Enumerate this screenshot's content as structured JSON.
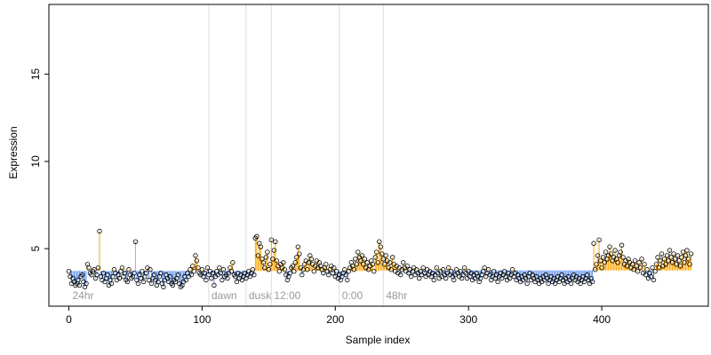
{
  "chart_data": {
    "type": "scatter",
    "title": "",
    "xlabel": "Sample index",
    "ylabel": "Expression",
    "xlim": [
      -15,
      480
    ],
    "ylim": [
      1.7,
      19.0
    ],
    "x_ticks": [
      0,
      100,
      200,
      300,
      400
    ],
    "y_ticks": [
      5,
      10,
      15
    ],
    "grid": false,
    "vertical_markers": [
      {
        "x": 105,
        "label": "dawn"
      },
      {
        "x": 133,
        "label": "dusk"
      },
      {
        "x": 152,
        "label": "12:00"
      },
      {
        "x": 203,
        "label": "0:00"
      },
      {
        "x": 236,
        "label": "48hr"
      }
    ],
    "annotations": [
      {
        "x": 2,
        "label": "24hr"
      }
    ],
    "baseline_colors": {
      "above": "#ffa500",
      "below": "#6495ed"
    },
    "series": [
      {
        "points_y": [
          3.7,
          3.4,
          3.0,
          3.3,
          3.1,
          2.9,
          3.0,
          3.2,
          2.9,
          3.4,
          3.5,
          3.1,
          2.8,
          3.0,
          4.1,
          3.9,
          3.6,
          3.5,
          3.7,
          3.8,
          3.3,
          3.5,
          3.9,
          6.0,
          3.4,
          3.2,
          3.6,
          3.1,
          3.3,
          3.5,
          2.9,
          3.2,
          3.0,
          3.4,
          3.8,
          3.6,
          3.2,
          3.5,
          3.3,
          3.7,
          3.9,
          3.4,
          3.6,
          3.2,
          3.1,
          3.8,
          3.5,
          3.3,
          3.4,
          3.6,
          5.4,
          3.2,
          3.0,
          3.5,
          3.3,
          3.7,
          3.1,
          3.4,
          3.6,
          3.9,
          3.2,
          3.8,
          3.0,
          3.3,
          3.5,
          3.2,
          2.9,
          3.1,
          3.4,
          3.6,
          3.0,
          2.8,
          3.2,
          3.5,
          3.3,
          3.1,
          3.4,
          3.0,
          2.9,
          3.2,
          3.1,
          3.3,
          3.5,
          3.0,
          2.8,
          2.9,
          3.1,
          3.4,
          3.2,
          3.6,
          3.4,
          3.8,
          3.5,
          4.0,
          3.7,
          4.6,
          4.3,
          3.9,
          3.6,
          3.5,
          3.8,
          3.4,
          3.6,
          3.2,
          3.9,
          3.5,
          3.7,
          3.3,
          3.6,
          2.9,
          3.4,
          3.7,
          3.5,
          3.9,
          3.6,
          3.2,
          3.8,
          3.4,
          3.5,
          3.3,
          3.6,
          3.9,
          3.7,
          4.2,
          3.5,
          3.4,
          3.1,
          3.6,
          3.3,
          3.5,
          3.2,
          3.4,
          3.6,
          3.3,
          3.5,
          3.7,
          3.4,
          3.6,
          3.8,
          3.5,
          5.6,
          5.7,
          4.6,
          5.3,
          5.1,
          4.4,
          4.2,
          3.9,
          4.5,
          4.8,
          3.8,
          4.1,
          5.5,
          4.4,
          4.9,
          5.4,
          4.3,
          4.0,
          3.7,
          4.1,
          3.9,
          4.2,
          3.8,
          3.5,
          3.2,
          3.4,
          3.6,
          3.9,
          4.0,
          3.7,
          4.2,
          4.5,
          5.1,
          4.7,
          3.9,
          3.5,
          3.8,
          4.1,
          4.3,
          3.8,
          4.2,
          4.6,
          4.4,
          4.1,
          3.7,
          4.0,
          4.3,
          3.9,
          4.2,
          4.0,
          3.8,
          3.6,
          3.9,
          4.1,
          3.7,
          3.5,
          3.8,
          4.0,
          3.6,
          3.9,
          3.4,
          3.7,
          3.3,
          3.5,
          3.2,
          3.4,
          3.6,
          3.8,
          3.5,
          3.2,
          3.7,
          3.9,
          4.2,
          4.0,
          3.8,
          4.4,
          4.1,
          4.8,
          4.5,
          4.3,
          4.6,
          4.1,
          4.4,
          3.9,
          4.2,
          3.8,
          4.0,
          4.3,
          4.1,
          3.7,
          4.5,
          4.8,
          4.2,
          5.4,
          5.1,
          4.7,
          4.4,
          4.1,
          4.6,
          4.3,
          3.9,
          4.2,
          3.8,
          4.5,
          4.1,
          3.7,
          4.0,
          3.6,
          3.9,
          3.5,
          3.8,
          4.2,
          3.9,
          3.7,
          4.0,
          3.6,
          3.8,
          3.4,
          3.7,
          3.9,
          3.5,
          3.8,
          3.6,
          3.3,
          3.7,
          3.5,
          3.9,
          3.6,
          3.4,
          3.8,
          3.5,
          3.7,
          3.4,
          3.6,
          3.2,
          3.5,
          3.9,
          3.6,
          3.3,
          3.7,
          3.4,
          3.8,
          3.5,
          3.3,
          3.6,
          3.9,
          3.5,
          3.7,
          3.4,
          3.2,
          3.5,
          3.8,
          3.6,
          3.4,
          3.7,
          3.3,
          3.5,
          3.9,
          3.6,
          3.3,
          3.7,
          3.4,
          3.6,
          3.2,
          3.5,
          3.3,
          3.6,
          3.4,
          3.1,
          3.3,
          3.5,
          3.7,
          3.9,
          3.4,
          3.6,
          3.8,
          3.5,
          3.2,
          3.4,
          3.7,
          3.3,
          3.5,
          3.1,
          3.4,
          3.6,
          3.3,
          3.5,
          3.7,
          3.4,
          3.2,
          3.6,
          3.3,
          3.5,
          3.8,
          3.4,
          3.6,
          3.2,
          3.5,
          3.3,
          3.1,
          3.4,
          3.2,
          3.5,
          3.3,
          3.0,
          3.4,
          3.6,
          3.2,
          3.5,
          3.3,
          3.1,
          3.4,
          3.2,
          3.0,
          3.3,
          3.1,
          3.4,
          3.2,
          3.5,
          3.3,
          3.0,
          3.2,
          3.4,
          3.1,
          3.3,
          3.0,
          3.2,
          3.4,
          3.1,
          3.3,
          3.5,
          3.2,
          3.0,
          3.3,
          3.1,
          3.4,
          3.2,
          3.0,
          3.3,
          3.5,
          3.2,
          3.4,
          3.1,
          3.3,
          3.0,
          3.2,
          3.4,
          3.1,
          3.3,
          3.5,
          3.2,
          3.0,
          3.3,
          3.1,
          5.3,
          3.8,
          4.1,
          4.6,
          5.5,
          4.3,
          3.9,
          4.5,
          4.2,
          4.8,
          4.4,
          4.6,
          5.1,
          4.7,
          4.3,
          4.5,
          4.9,
          4.4,
          4.2,
          4.6,
          4.8,
          5.2,
          4.5,
          4.1,
          4.3,
          4.0,
          4.4,
          4.2,
          3.9,
          4.1,
          3.8,
          4.3,
          4.0,
          3.7,
          4.2,
          3.9,
          4.4,
          3.6,
          4.1,
          3.5,
          3.8,
          3.3,
          3.6,
          3.4,
          3.9,
          3.2,
          3.7,
          4.1,
          4.5,
          3.9,
          4.3,
          4.7,
          4.0,
          4.4,
          4.1,
          4.6,
          4.3,
          4.9,
          4.5,
          4.2,
          4.7,
          4.4,
          4.1,
          4.6,
          4.3,
          4.0,
          4.5,
          4.8,
          4.2,
          4.6,
          4.9,
          4.4,
          4.1,
          4.7
        ]
      }
    ]
  }
}
